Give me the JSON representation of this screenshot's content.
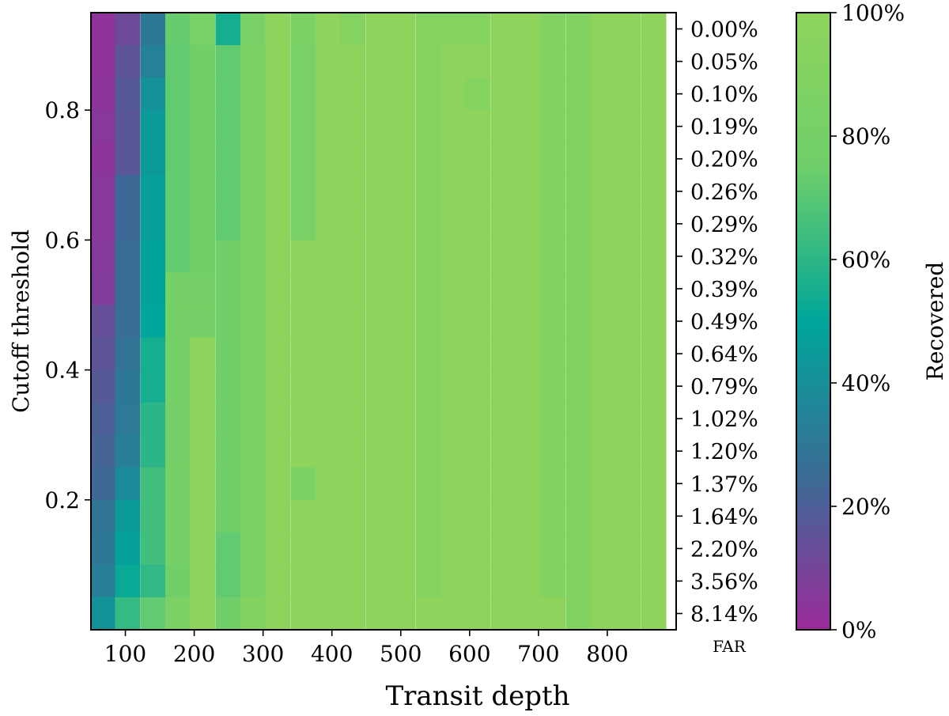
{
  "chart_data": {
    "type": "heatmap",
    "xlabel": "Transit depth",
    "ylabel": "Cutoff threshold",
    "x_ticks": [
      100,
      200,
      300,
      400,
      500,
      600,
      700,
      800
    ],
    "x_tick_labels": [
      "100",
      "200",
      "300",
      "400",
      "500",
      "600",
      "700",
      "800"
    ],
    "y_ticks": [
      0.2,
      0.4,
      0.6,
      0.8
    ],
    "y_tick_labels": [
      "0.2",
      "0.4",
      "0.6",
      "0.8"
    ],
    "xlim": [
      50,
      900
    ],
    "ylim": [
      0.0,
      0.95
    ],
    "secondary_y_label": "FAR",
    "secondary_y_ticks": [
      "0.00%",
      "0.05%",
      "0.10%",
      "0.19%",
      "0.20%",
      "0.26%",
      "0.29%",
      "0.32%",
      "0.39%",
      "0.49%",
      "0.64%",
      "0.79%",
      "1.02%",
      "1.20%",
      "1.37%",
      "1.64%",
      "2.20%",
      "3.56%",
      "8.14%"
    ],
    "colorbar": {
      "label": "Recovered",
      "ticks": [
        "0%",
        "20%",
        "40%",
        "60%",
        "80%",
        "100%"
      ],
      "colors": [
        "#9b2b9a",
        "#3a6c96",
        "#00a69a",
        "#6fcf6a",
        "#8ed45c"
      ]
    },
    "x_columns": [
      67,
      103,
      140,
      176,
      212,
      249,
      285,
      321,
      358,
      394,
      430,
      467,
      503,
      540,
      576,
      612,
      649,
      685,
      721,
      758,
      794,
      830,
      867
    ],
    "y_rows_top_to_bottom": [
      0.925,
      0.875,
      0.825,
      0.775,
      0.725,
      0.675,
      0.625,
      0.575,
      0.525,
      0.475,
      0.425,
      0.375,
      0.325,
      0.275,
      0.225,
      0.175,
      0.125,
      0.075,
      0.025
    ],
    "recovered_percent": [
      [
        3,
        12,
        30,
        73,
        82,
        55,
        82,
        100,
        85,
        100,
        92,
        100,
        100,
        92,
        92,
        92,
        100,
        100,
        90,
        90,
        100,
        100,
        100
      ],
      [
        3,
        16,
        34,
        72,
        76,
        72,
        85,
        100,
        82,
        100,
        100,
        100,
        100,
        92,
        100,
        100,
        100,
        100,
        90,
        90,
        100,
        100,
        100
      ],
      [
        4,
        18,
        41,
        72,
        76,
        72,
        85,
        100,
        82,
        100,
        100,
        100,
        100,
        92,
        100,
        92,
        100,
        100,
        90,
        90,
        100,
        100,
        100
      ],
      [
        5,
        17,
        45,
        72,
        76,
        72,
        85,
        100,
        82,
        100,
        100,
        100,
        100,
        92,
        100,
        100,
        100,
        100,
        90,
        90,
        100,
        100,
        100
      ],
      [
        4,
        17,
        45,
        72,
        76,
        72,
        85,
        100,
        82,
        100,
        100,
        100,
        100,
        92,
        100,
        100,
        100,
        100,
        90,
        90,
        100,
        100,
        100
      ],
      [
        5,
        24,
        47,
        72,
        76,
        72,
        85,
        100,
        82,
        100,
        100,
        100,
        100,
        92,
        100,
        100,
        100,
        100,
        90,
        90,
        100,
        100,
        100
      ],
      [
        5,
        24,
        47,
        72,
        76,
        72,
        85,
        100,
        82,
        100,
        100,
        100,
        100,
        92,
        100,
        100,
        100,
        100,
        90,
        90,
        100,
        100,
        100
      ],
      [
        6,
        26,
        49,
        72,
        76,
        76,
        85,
        100,
        100,
        100,
        100,
        100,
        100,
        92,
        100,
        100,
        100,
        100,
        90,
        90,
        100,
        100,
        100
      ],
      [
        7,
        26,
        49,
        80,
        80,
        76,
        85,
        100,
        100,
        100,
        100,
        100,
        100,
        92,
        100,
        100,
        100,
        100,
        90,
        90,
        100,
        100,
        100
      ],
      [
        14,
        26,
        50,
        80,
        80,
        76,
        85,
        100,
        100,
        100,
        100,
        100,
        100,
        92,
        100,
        100,
        100,
        100,
        90,
        90,
        100,
        100,
        100
      ],
      [
        16,
        28,
        55,
        80,
        100,
        76,
        85,
        100,
        100,
        100,
        100,
        100,
        100,
        92,
        100,
        100,
        100,
        100,
        90,
        90,
        100,
        100,
        100
      ],
      [
        18,
        30,
        55,
        80,
        100,
        76,
        85,
        100,
        100,
        100,
        100,
        100,
        100,
        92,
        100,
        100,
        100,
        100,
        90,
        90,
        100,
        100,
        100
      ],
      [
        20,
        31,
        60,
        80,
        100,
        76,
        85,
        100,
        100,
        100,
        100,
        100,
        100,
        92,
        100,
        100,
        100,
        100,
        90,
        90,
        100,
        100,
        100
      ],
      [
        22,
        33,
        60,
        80,
        100,
        76,
        85,
        100,
        100,
        100,
        100,
        100,
        100,
        92,
        100,
        100,
        100,
        100,
        90,
        90,
        100,
        100,
        100
      ],
      [
        24,
        38,
        65,
        80,
        100,
        76,
        85,
        100,
        85,
        100,
        100,
        100,
        100,
        92,
        100,
        100,
        100,
        100,
        90,
        90,
        100,
        100,
        100
      ],
      [
        28,
        45,
        65,
        80,
        100,
        76,
        85,
        100,
        100,
        100,
        100,
        100,
        100,
        92,
        100,
        100,
        100,
        100,
        90,
        90,
        100,
        100,
        100
      ],
      [
        30,
        48,
        65,
        80,
        100,
        72,
        85,
        100,
        100,
        100,
        100,
        100,
        100,
        92,
        100,
        100,
        100,
        100,
        90,
        90,
        100,
        100,
        100
      ],
      [
        33,
        52,
        61,
        76,
        100,
        72,
        85,
        100,
        100,
        100,
        100,
        100,
        100,
        92,
        100,
        100,
        100,
        100,
        90,
        90,
        100,
        100,
        100
      ],
      [
        42,
        62,
        72,
        85,
        100,
        76,
        90,
        100,
        100,
        100,
        100,
        100,
        100,
        100,
        100,
        100,
        100,
        100,
        100,
        90,
        100,
        100,
        100
      ]
    ]
  }
}
